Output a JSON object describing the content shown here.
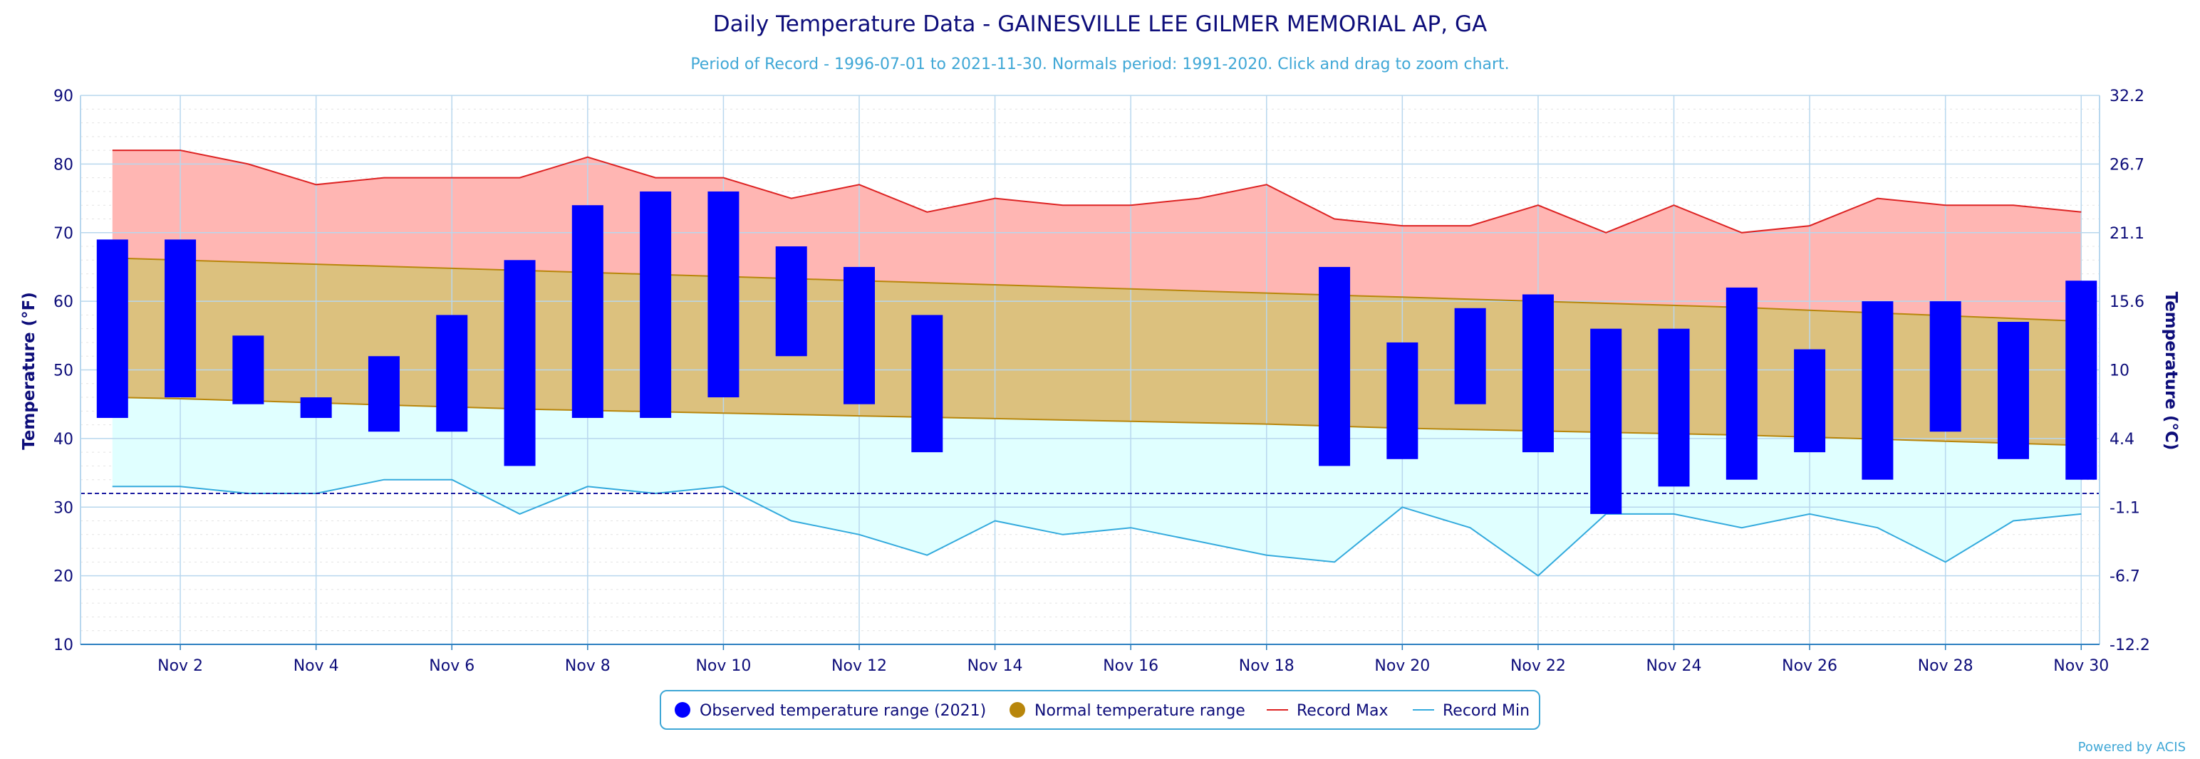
{
  "chart_data": {
    "type": "bar",
    "title": "Daily Temperature Data - GAINESVILLE LEE GILMER MEMORIAL AP, GA",
    "subtitle": "Period of Record - 1996-07-01 to 2021-11-30. Normals period: 1991-2020. Click and drag to zoom chart.",
    "ylabel_left": "Temperature (°F)",
    "ylabel_right": "Temperature (°C)",
    "ylim": [
      10,
      90
    ],
    "y_ticks_left": [
      "10",
      "20",
      "30",
      "40",
      "50",
      "60",
      "70",
      "80",
      "90"
    ],
    "y_ticks_right": [
      "-12.2",
      "-6.7",
      "-1.1",
      "4.4",
      "10",
      "15.6",
      "21.1",
      "26.7",
      "32.2"
    ],
    "x_tick_labels": [
      "Nov 2",
      "Nov 4",
      "Nov 6",
      "Nov 8",
      "Nov 10",
      "Nov 12",
      "Nov 14",
      "Nov 16",
      "Nov 18",
      "Nov 20",
      "Nov 22",
      "Nov 24",
      "Nov 26",
      "Nov 28",
      "Nov 30"
    ],
    "x_tick_days": [
      2,
      4,
      6,
      8,
      10,
      12,
      14,
      16,
      18,
      20,
      22,
      24,
      26,
      28,
      30
    ],
    "days": [
      1,
      2,
      3,
      4,
      5,
      6,
      7,
      8,
      9,
      10,
      11,
      12,
      13,
      14,
      15,
      16,
      17,
      18,
      19,
      20,
      21,
      22,
      23,
      24,
      25,
      26,
      27,
      28,
      29,
      30
    ],
    "freezing_line": 32,
    "series": [
      {
        "name": "Observed temperature range (2021)",
        "color": "#0000ff",
        "low": [
          43,
          46,
          45,
          43,
          41,
          41,
          36,
          43,
          43,
          46,
          52,
          45,
          38,
          null,
          null,
          null,
          null,
          null,
          36,
          37,
          45,
          38,
          29,
          33,
          34,
          38,
          34,
          41,
          37,
          34
        ],
        "high": [
          69,
          69,
          55,
          46,
          52,
          58,
          66,
          74,
          76,
          76,
          68,
          65,
          58,
          null,
          null,
          null,
          null,
          null,
          65,
          54,
          59,
          61,
          56,
          56,
          62,
          53,
          60,
          60,
          57,
          63
        ]
      },
      {
        "name": "Normal temperature range",
        "color": "#b8860b",
        "high": [
          66.3,
          66.0,
          65.7,
          65.4,
          65.1,
          64.8,
          64.5,
          64.2,
          63.9,
          63.6,
          63.3,
          63.0,
          62.7,
          62.4,
          62.1,
          61.8,
          61.5,
          61.2,
          60.9,
          60.6,
          60.3,
          60.0,
          59.7,
          59.4,
          59.1,
          58.7,
          58.3,
          57.9,
          57.5,
          57.1
        ],
        "low": [
          46.0,
          45.8,
          45.5,
          45.2,
          44.9,
          44.6,
          44.3,
          44.1,
          43.9,
          43.7,
          43.5,
          43.3,
          43.1,
          42.9,
          42.7,
          42.5,
          42.3,
          42.1,
          41.8,
          41.5,
          41.3,
          41.1,
          40.9,
          40.7,
          40.5,
          40.2,
          39.9,
          39.6,
          39.3,
          39.0
        ]
      },
      {
        "name": "Record Max",
        "color": "#dd2222",
        "values": [
          82,
          82,
          80,
          77,
          78,
          78,
          78,
          81,
          78,
          78,
          75,
          77,
          73,
          75,
          74,
          74,
          75,
          77,
          72,
          71,
          71,
          74,
          70,
          74,
          70,
          71,
          75,
          74,
          74,
          73
        ]
      },
      {
        "name": "Record Min",
        "color": "#33aadd",
        "values": [
          33,
          33,
          32,
          32,
          34,
          34,
          29,
          33,
          32,
          33,
          28,
          26,
          23,
          28,
          26,
          27,
          25,
          23,
          22,
          30,
          27,
          20,
          29,
          29,
          27,
          29,
          27,
          22,
          28,
          29
        ]
      }
    ],
    "legend_position": "bottom-center",
    "credit": "Powered by ACIS"
  },
  "colors": {
    "title": "#0d0d7a",
    "subtitle": "#3fa7d6",
    "record_band": "#ffb6b3",
    "normal_band": "#dcc17e",
    "cold_band": "#e0ffff",
    "grid": "#b8d7ee",
    "freezing": "#1a1aa0"
  }
}
